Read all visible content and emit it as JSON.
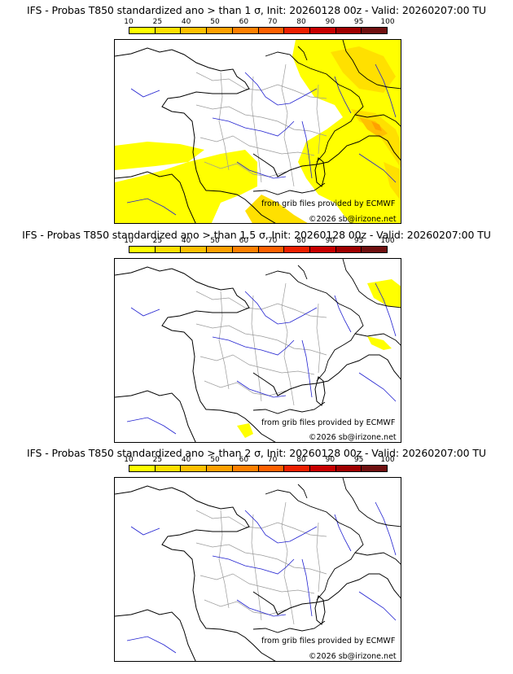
{
  "panels": [
    {
      "title": "IFS - Probas T850  standardized ano > than 1 σ, Init: 20260128 00z - Valid: 20260207:00 TU",
      "credit": "from grib files provided by ECMWF",
      "copyright": "©2026 sb@irizone.net"
    },
    {
      "title": "IFS - Probas T850  standardized ano > than 1.5 σ, Init: 20260128 00z - Valid: 20260207:00 TU",
      "credit": "from grib files provided by ECMWF",
      "copyright": "©2026 sb@irizone.net"
    },
    {
      "title": "IFS - Probas T850  standardized ano > than 2 σ, Init: 20260128 00z - Valid: 20260207:00 TU",
      "credit": "from grib files provided by ECMWF",
      "copyright": "©2026 sb@irizone.net"
    }
  ],
  "colorscale": {
    "tick_labels": [
      "10",
      "25",
      "40",
      "50",
      "60",
      "70",
      "80",
      "90",
      "95",
      "100"
    ],
    "colors": [
      "#ffff00",
      "#ffe000",
      "#ffc000",
      "#ffa000",
      "#ff8000",
      "#ff6000",
      "#ee2000",
      "#c80000",
      "#a00000",
      "#701010"
    ]
  },
  "map_colors": {
    "land_border": "#000000",
    "coast": "#000000",
    "rivers": "#2020d0",
    "admin": "#9a9a9a"
  }
}
